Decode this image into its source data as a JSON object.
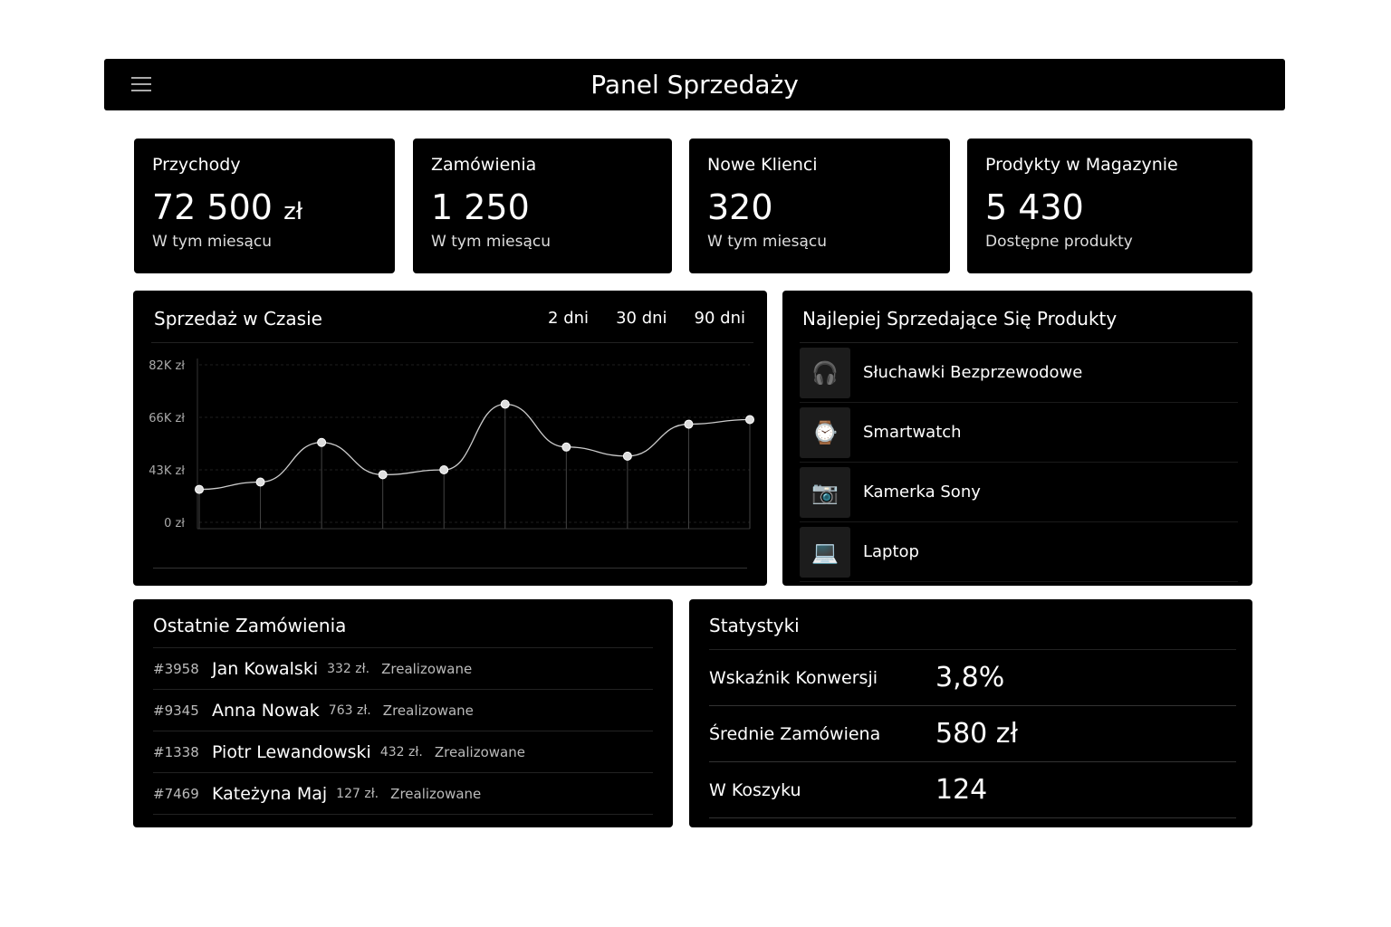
{
  "header": {
    "title": "Panel Sprzedaży",
    "menu_icon": "hamburger-icon"
  },
  "kpis": [
    {
      "title": "Przychody",
      "value": "72 500",
      "unit": "zł",
      "sub": "W tym miesącu"
    },
    {
      "title": "Zamówienia",
      "value": "1 250",
      "unit": "",
      "sub": "W tym miesącu"
    },
    {
      "title": "Nowe Klienci",
      "value": "320",
      "unit": "",
      "sub": "W tym miesącu"
    },
    {
      "title": "Prodykty w Magazynie",
      "value": "5 430",
      "unit": "",
      "sub": "Dostępne produkty"
    }
  ],
  "sales": {
    "title": "Sprzedaż w Czasie",
    "ranges": [
      "2 dni",
      "30 dni",
      "90 dni"
    ]
  },
  "chart_data": {
    "type": "line",
    "title": "Sprzedaż w Czasie",
    "ytick_labels": [
      "82K zł",
      "66K zł",
      "43K zł",
      "0 zł"
    ],
    "yticks": [
      82,
      66,
      43,
      0
    ],
    "ylabel": "",
    "xlabel": "",
    "values": [
      27,
      33,
      55,
      39,
      43,
      70,
      53,
      49,
      63,
      65
    ],
    "grid": true
  },
  "top": {
    "title": "Najlepiej Sprzedające Się Produkty",
    "items": [
      {
        "name": "Słuchawki Bezprzewodowe",
        "icon": "headphones-icon"
      },
      {
        "name": "Smartwatch",
        "icon": "smartwatch-icon"
      },
      {
        "name": "Kamerka Sony",
        "icon": "camera-icon"
      },
      {
        "name": "Laptop",
        "icon": "laptop-icon"
      }
    ]
  },
  "orders": {
    "title": "Ostatnie Zamówienia",
    "rows": [
      {
        "id": "#3958",
        "name": "Jan Kowalski",
        "amount": "332 zł.",
        "status": "Zrealizowane"
      },
      {
        "id": "#9345",
        "name": "Anna Nowak",
        "amount": "763 zł.",
        "status": "Zrealizowane"
      },
      {
        "id": "#1338",
        "name": "Piotr Lewandowski",
        "amount": "432 zł.",
        "status": "Zrealizowane"
      },
      {
        "id": "#7469",
        "name": "Kateżyna Maj",
        "amount": "127 zł.",
        "status": "Zrealizowane"
      }
    ]
  },
  "stats": {
    "title": "Statystyki",
    "rows": [
      {
        "label": "Wskaźnik Konwersji",
        "value": "3,8%"
      },
      {
        "label": "Średnie Zamówiena",
        "value": "580 zł"
      },
      {
        "label": "W Koszyku",
        "value": "124"
      }
    ]
  }
}
